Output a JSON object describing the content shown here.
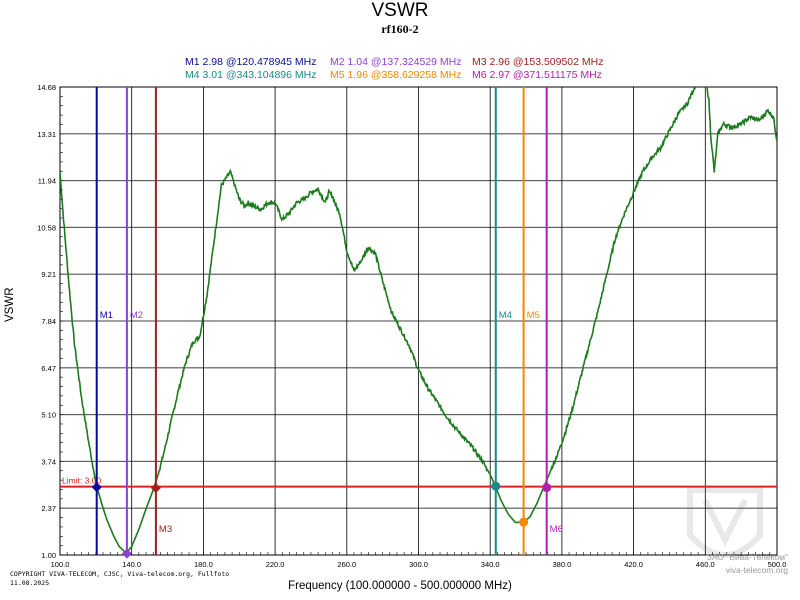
{
  "chart_data": {
    "type": "line",
    "title": "VSWR",
    "subtitle": "rf160-2",
    "ylabel": "VSWR",
    "xlabel": "Frequency (100.000000 - 500.000000 MHz)",
    "xlim": [
      100,
      500
    ],
    "ylim": [
      1.0,
      14.68
    ],
    "xticks": [
      100,
      140,
      180,
      220,
      260,
      300,
      340,
      380,
      420,
      460,
      500
    ],
    "xtick_labels": [
      "100.0",
      "140.0",
      "180.0",
      "220.0",
      "260.0",
      "300.0",
      "340.0",
      "380.0",
      "420.0",
      "460.0",
      "500.0"
    ],
    "yticks": [
      1.0,
      2.37,
      3.74,
      5.1,
      6.47,
      7.84,
      9.21,
      10.58,
      11.94,
      13.31,
      14.68
    ],
    "ytick_labels": [
      "1.00",
      "2.37",
      "3.74",
      "5.10",
      "6.47",
      "7.84",
      "9.21",
      "10.58",
      "11.94",
      "13.31",
      "14.68"
    ],
    "limit": {
      "label": "Limit: 3.00",
      "value": 3.0,
      "color": "#e02020"
    },
    "series": [
      {
        "name": "VSWR",
        "color": "#1e7a1e",
        "x": [
          100,
          102,
          105,
          108,
          112,
          116,
          120,
          123,
          126,
          130,
          133,
          137,
          140,
          144,
          148,
          152,
          155,
          158,
          162,
          166,
          170,
          174,
          178,
          182,
          186,
          190,
          195,
          200,
          203,
          205,
          208,
          212,
          216,
          220,
          224,
          228,
          232,
          236,
          240,
          244,
          248,
          250,
          252,
          254,
          256,
          260,
          264,
          268,
          272,
          276,
          280,
          285,
          290,
          295,
          300,
          305,
          310,
          315,
          320,
          325,
          330,
          335,
          340,
          343,
          346,
          350,
          354,
          358,
          362,
          366,
          370,
          374,
          378,
          382,
          386,
          390,
          395,
          400,
          405,
          410,
          415,
          420,
          425,
          430,
          435,
          440,
          445,
          450,
          455,
          460,
          462,
          463,
          465,
          467,
          470,
          475,
          480,
          485,
          490,
          495,
          498,
          500
        ],
        "y": [
          12.2,
          10.8,
          8.9,
          7.2,
          5.6,
          4.3,
          3.1,
          2.55,
          2.05,
          1.55,
          1.25,
          1.05,
          1.25,
          1.75,
          2.35,
          2.9,
          3.4,
          4.0,
          4.9,
          5.8,
          6.6,
          7.2,
          7.4,
          8.6,
          10.2,
          11.8,
          12.2,
          11.4,
          11.2,
          11.3,
          11.2,
          11.1,
          11.3,
          11.3,
          10.8,
          11.0,
          11.3,
          11.4,
          11.6,
          11.7,
          11.3,
          11.6,
          11.5,
          11.2,
          11.0,
          9.9,
          9.3,
          9.6,
          10.0,
          9.8,
          9.0,
          8.1,
          7.6,
          7.1,
          6.4,
          5.9,
          5.5,
          5.1,
          4.75,
          4.45,
          4.15,
          3.8,
          3.35,
          3.0,
          2.6,
          2.2,
          1.95,
          1.96,
          2.1,
          2.5,
          3.0,
          3.5,
          4.0,
          4.6,
          5.3,
          6.1,
          7.1,
          8.1,
          9.2,
          10.3,
          11.0,
          11.6,
          12.2,
          12.6,
          12.9,
          13.4,
          13.9,
          14.2,
          14.8,
          15.0,
          14.3,
          13.3,
          12.2,
          13.3,
          13.6,
          13.5,
          13.6,
          13.8,
          13.7,
          14.0,
          13.8,
          13.1
        ]
      }
    ],
    "markers": [
      {
        "id": "M1",
        "label": "M1",
        "readout": "M1  2.98 @120.478945 MHz",
        "freq": 120.478945,
        "value": 2.98,
        "color": "#0a0a9a",
        "label_pos": "top",
        "symbol": "diamond"
      },
      {
        "id": "M2",
        "label": "M2",
        "readout": "M2  1.04 @137.324529 MHz",
        "freq": 137.324529,
        "value": 1.04,
        "color": "#9040d0",
        "label_pos": "top",
        "symbol": "diamond"
      },
      {
        "id": "M3",
        "label": "M3",
        "readout": "M3  2.96 @153.509502 MHz",
        "freq": 153.509502,
        "value": 2.96,
        "color": "#a02020",
        "label_pos": "bottom",
        "symbol": "diamond"
      },
      {
        "id": "M4",
        "label": "M4",
        "readout": "M4  3.01 @343.104896 MHz",
        "freq": 343.104896,
        "value": 3.01,
        "color": "#1a8a8a",
        "label_pos": "top",
        "symbol": "circle"
      },
      {
        "id": "M5",
        "label": "M5",
        "readout": "M5  1.96 @358.629258 MHz",
        "freq": 358.629258,
        "value": 1.96,
        "color": "#f08800",
        "label_pos": "top",
        "symbol": "circle"
      },
      {
        "id": "M6",
        "label": "M6",
        "readout": "M6  2.97 @371.511175 MHz",
        "freq": 371.511175,
        "value": 2.97,
        "color": "#b020b0",
        "label_pos": "bottom",
        "symbol": "circle"
      }
    ]
  },
  "footer": {
    "copyright": "COPYRIGHT VIVA-TELECOM, CJSC, Viva-telecom.org, Fullfoto",
    "date": "11.08.2025",
    "watermark_line1": "ЗАО \"Вива-Телеком\"",
    "watermark_line2": "viva-telecom.org"
  }
}
